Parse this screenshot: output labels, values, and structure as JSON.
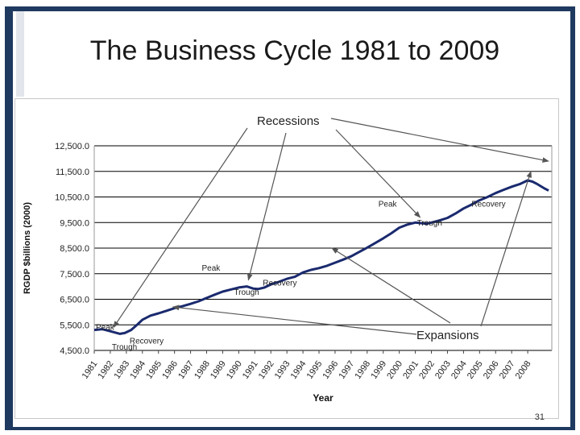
{
  "slide": {
    "title": "The Business Cycle 1981 to 2009",
    "page_number": "31"
  },
  "colors": {
    "frame": "#1f3a60",
    "line": "#1a2a6e",
    "arrow": "#555555",
    "grid": "#000000"
  },
  "chart_data": {
    "type": "line",
    "title": "",
    "xlabel": "Year",
    "ylabel": "RGDP $billions (2000)",
    "ylim": [
      4500,
      12500
    ],
    "yticks": [
      4500,
      5500,
      6500,
      7500,
      8500,
      9500,
      10500,
      11500,
      12500
    ],
    "ytick_labels": [
      "4,500.0",
      "5,500.0",
      "6,500.0",
      "7,500.0",
      "8,500.0",
      "9,500.0",
      "10,500.0",
      "11,500.0",
      "12,500.0"
    ],
    "x_labels": [
      "1981",
      "1982",
      "1983",
      "1984",
      "1985",
      "1986",
      "1987",
      "1988",
      "1989",
      "1990",
      "1991",
      "1992",
      "1993",
      "1994",
      "1995",
      "1996",
      "1997",
      "1998",
      "1999",
      "2000",
      "2001",
      "2002",
      "2003",
      "2004",
      "2005",
      "2006",
      "2007",
      "2008"
    ],
    "xlim": [
      1981,
      2009.5
    ],
    "series": [
      {
        "name": "RGDP",
        "x": [
          1981,
          1981.5,
          1982,
          1982.3,
          1982.6,
          1982.9,
          1983.3,
          1983.7,
          1984,
          1984.5,
          1985,
          1985.5,
          1986,
          1986.5,
          1987,
          1987.5,
          1988,
          1988.5,
          1989,
          1989.5,
          1990,
          1990.5,
          1990.9,
          1991.2,
          1991.6,
          1992,
          1992.5,
          1993,
          1993.5,
          1994,
          1994.5,
          1995,
          1995.5,
          1996,
          1996.5,
          1997,
          1997.5,
          1998,
          1998.5,
          1999,
          1999.5,
          2000,
          2000.5,
          2001,
          2001.3,
          2001.7,
          2002,
          2002.5,
          2003,
          2003.5,
          2004,
          2004.5,
          2005,
          2005.5,
          2006,
          2006.5,
          2007,
          2007.5,
          2008,
          2008.3,
          2008.6,
          2009,
          2009.3
        ],
        "values": [
          5300,
          5330,
          5250,
          5200,
          5150,
          5180,
          5300,
          5520,
          5700,
          5860,
          5950,
          6050,
          6150,
          6230,
          6320,
          6420,
          6550,
          6680,
          6800,
          6880,
          6960,
          7000,
          6920,
          6900,
          6960,
          7080,
          7180,
          7300,
          7380,
          7550,
          7650,
          7720,
          7810,
          7930,
          8050,
          8180,
          8350,
          8520,
          8700,
          8880,
          9080,
          9300,
          9420,
          9500,
          9480,
          9450,
          9500,
          9580,
          9680,
          9850,
          10050,
          10200,
          10370,
          10500,
          10650,
          10780,
          10900,
          11000,
          11150,
          11100,
          11000,
          10850,
          10750
        ]
      }
    ],
    "annotations": [
      {
        "text": "Recessions"
      },
      {
        "text": "Expansions"
      },
      {
        "text": "Peak"
      },
      {
        "text": "Trough"
      },
      {
        "text": "Recovery"
      },
      {
        "text": "Peak"
      },
      {
        "text": "Trough"
      },
      {
        "text": "Recovery"
      },
      {
        "text": "Peak"
      },
      {
        "text": "Trough"
      },
      {
        "text": "Recovery"
      }
    ]
  }
}
